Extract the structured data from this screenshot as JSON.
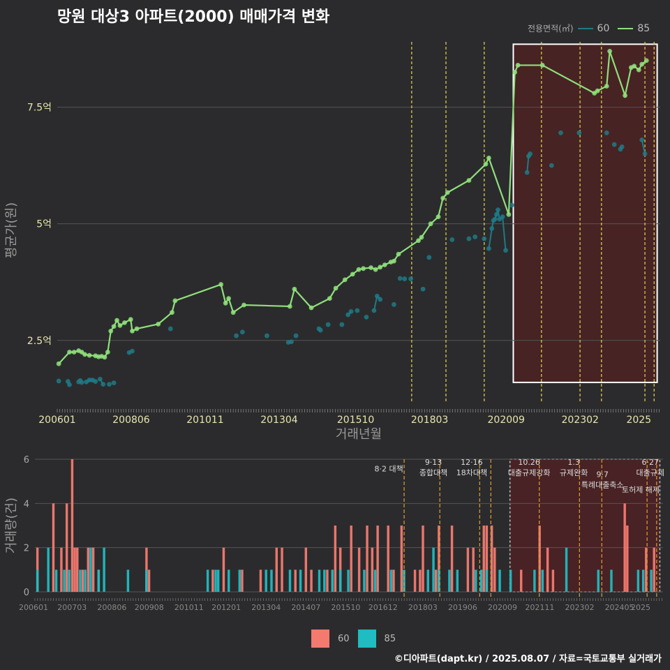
{
  "title": "망원 대상3 아파트(2000) 매매가격 변화",
  "credit": "©디아파트(dapt.kr) / 2025.08.07 / 자료=국토교통부 실거래가",
  "colors": {
    "bg": "#2b2b2d",
    "grid": "#555555",
    "s60_line": "#1f7a86",
    "s85_line": "#8fe07a",
    "bar60": "#f47a70",
    "bar85": "#1fbcc2",
    "policy_top": "#e8d84a",
    "policy_bottom": "#e0a030",
    "highlight_fill": "#4a2224",
    "axis_text": "#e8e6b0"
  },
  "legend_top": {
    "title": "전용면적(㎡)",
    "items": [
      "60",
      "85"
    ]
  },
  "legend_bottom": {
    "items": [
      "60",
      "85"
    ]
  },
  "chart_data": [
    {
      "type": "line",
      "xlabel": "거래년월",
      "ylabel": "평균가(원)",
      "y_ticks": [
        {
          "value": 25000,
          "label": "2.5억"
        },
        {
          "value": 50000,
          "label": "5억"
        },
        {
          "value": 75000,
          "label": "7.5억"
        }
      ],
      "ylim": [
        11500,
        89000
      ],
      "xlim": [
        2006.0,
        2025.7
      ],
      "x_ticks": [
        "200601",
        "200806",
        "201011",
        "201304",
        "201510",
        "201803",
        "202009",
        "202302",
        "2025"
      ],
      "grid": true,
      "legend": "top-right",
      "highlight": {
        "x0": 2020.9,
        "x1": 2025.6,
        "y0": 16000,
        "y1": 88500
      },
      "policy_lines": [
        2017.58,
        2018.7,
        2019.95,
        2021.82,
        2023.08,
        2023.78,
        2025.2,
        2025.5
      ],
      "series": [
        {
          "name": "85",
          "x": [
            2006.05,
            2006.4,
            2006.55,
            2006.7,
            2006.8,
            2006.9,
            2007.05,
            2007.25,
            2007.35,
            2007.45,
            2007.55,
            2007.65,
            2007.75,
            2007.85,
            2007.95,
            2008.05,
            2008.2,
            2008.4,
            2008.45,
            2008.6,
            2009.3,
            2009.75,
            2009.85,
            2011.35,
            2011.5,
            2011.6,
            2011.75,
            2012.1,
            2013.6,
            2013.75,
            2014.3,
            2014.9,
            2015.1,
            2015.4,
            2015.65,
            2015.85,
            2016.0,
            2016.25,
            2016.4,
            2016.55,
            2016.7,
            2016.9,
            2017.0,
            2017.15,
            2017.8,
            2017.9,
            2018.2,
            2018.45,
            2018.6,
            2018.75,
            2019.45,
            2020.0,
            2020.1,
            2020.75,
            2020.95,
            2021.05,
            2021.85,
            2023.55,
            2023.65,
            2023.95,
            2024.05,
            2024.55,
            2024.75,
            2024.85,
            2025.0,
            2025.1,
            2025.25
          ],
          "y": [
            20000,
            22500,
            22500,
            22800,
            22500,
            22000,
            21800,
            21700,
            21500,
            21600,
            21400,
            22500,
            27000,
            28000,
            29300,
            28200,
            28800,
            29500,
            27000,
            27500,
            28500,
            31000,
            33500,
            37000,
            33000,
            34000,
            31000,
            32600,
            32300,
            36000,
            32000,
            34000,
            36200,
            38000,
            39200,
            40200,
            40400,
            40600,
            40200,
            40700,
            41200,
            41800,
            42000,
            43500,
            46400,
            47100,
            50000,
            51500,
            55500,
            56700,
            59300,
            62800,
            64100,
            52000,
            82500,
            84000,
            84000,
            78000,
            78500,
            79500,
            87000,
            77500,
            83500,
            83800,
            83000,
            84200,
            85000
          ]
        },
        {
          "name": "60",
          "x": [
            2006.05,
            2006.35,
            2006.4,
            2006.7,
            2006.75,
            2006.8,
            2006.95,
            2007.05,
            2007.15,
            2007.25,
            2007.4,
            2007.5,
            2007.7,
            2007.85,
            2008.35,
            2008.45,
            2009.7,
            2011.85,
            2012.05,
            2012.85,
            2013.55,
            2013.65,
            2013.8,
            2014.55,
            2014.6,
            2014.85,
            2015.3,
            2015.5,
            2015.6,
            2015.8,
            2016.1,
            2016.35,
            2016.45,
            2016.55,
            2017.0,
            2017.2,
            2017.35,
            2017.55,
            2017.95,
            2018.15,
            2018.9,
            2019.45,
            2019.65,
            2019.95,
            2020.1,
            2020.2,
            2020.25,
            2020.3,
            2020.35,
            2020.4,
            2020.45,
            2020.55,
            2020.65,
            2020.85,
            2021.35,
            2021.4,
            2021.45,
            2022.15,
            2022.45,
            2023.05,
            2023.95,
            2024.2,
            2024.4,
            2024.45,
            2025.1,
            2025.2
          ],
          "y": [
            16300,
            16200,
            15500,
            16100,
            16400,
            16000,
            16100,
            16500,
            16500,
            16200,
            16700,
            15600,
            15600,
            15900,
            22400,
            22700,
            27500,
            26000,
            26800,
            26000,
            24600,
            24700,
            26000,
            27500,
            27200,
            28400,
            28400,
            30500,
            31200,
            31400,
            30000,
            31400,
            34500,
            33800,
            32700,
            38300,
            38200,
            38200,
            36000,
            42800,
            46600,
            46800,
            47200,
            46800,
            44700,
            49000,
            50700,
            51000,
            52000,
            53000,
            51000,
            51500,
            44300,
            54000,
            61000,
            64500,
            65000,
            62500,
            69500,
            69500,
            69500,
            67000,
            66000,
            66500,
            68000,
            65000
          ]
        }
      ]
    },
    {
      "type": "bar",
      "ylabel": "거래량(건)",
      "ylim": [
        0,
        6
      ],
      "y_ticks": [
        0,
        2,
        4,
        6
      ],
      "xlim": [
        2006.0,
        2025.7
      ],
      "x_ticks": [
        "200601",
        "200703",
        "200806",
        "200908",
        "201011",
        "201201",
        "201304",
        "201407",
        "201510",
        "201612",
        "201803",
        "201906",
        "202009",
        "202111",
        "202302",
        "202405",
        "2025"
      ],
      "highlight": {
        "x0": 2020.9,
        "x1": 2025.6
      },
      "policy_lines": [
        2017.58,
        2018.7,
        2019.95,
        2020.3,
        2021.82,
        2023.08,
        2023.78,
        2025.2,
        2025.5
      ],
      "policy_labels": [
        {
          "x": 2017.1,
          "y": 5.45,
          "lines": [
            "8·2 대책"
          ]
        },
        {
          "x": 2018.5,
          "y": 5.75,
          "lines": [
            "9·13",
            "종합대책"
          ]
        },
        {
          "x": 2019.7,
          "y": 5.75,
          "lines": [
            "12·16",
            "18차대책"
          ]
        },
        {
          "x": 2021.5,
          "y": 5.75,
          "lines": [
            "10.26",
            "대출규제강화"
          ]
        },
        {
          "x": 2022.9,
          "y": 5.75,
          "lines": [
            "1.3",
            "규제완화"
          ]
        },
        {
          "x": 2023.8,
          "y": 5.2,
          "lines": [
            "9·7",
            "특례대출축소"
          ]
        },
        {
          "x": 2025.3,
          "y": 5.75,
          "lines": [
            "6·27",
            "대출규제"
          ]
        },
        {
          "x": 2025.0,
          "y": 4.5,
          "lines": [
            "토허제 해제"
          ]
        }
      ],
      "series": [
        {
          "name": "60",
          "x": [
            2006.08,
            2006.58,
            2006.83,
            2007.0,
            2007.17,
            2007.25,
            2007.33,
            2007.5,
            2007.67,
            2007.83,
            2008.0,
            2009.5,
            2009.58,
            2011.58,
            2011.92,
            2012.5,
            2013.08,
            2013.58,
            2013.75,
            2014.17,
            2014.5,
            2014.67,
            2015.17,
            2015.42,
            2015.58,
            2015.92,
            2016.17,
            2016.42,
            2016.58,
            2016.75,
            2017.08,
            2017.25,
            2017.5,
            2017.92,
            2018.08,
            2018.17,
            2018.58,
            2018.67,
            2019.08,
            2019.58,
            2019.75,
            2020.08,
            2020.17,
            2020.33,
            2020.42,
            2021.25,
            2021.83,
            2022.08,
            2022.25,
            2024.5,
            2024.58,
            2025.17,
            2025.42
          ],
          "values": [
            2,
            4,
            2,
            4,
            6,
            2,
            2,
            1,
            2,
            2,
            1,
            2,
            1,
            1,
            2,
            1,
            1,
            2,
            2,
            1,
            2,
            1,
            1,
            3,
            2,
            3,
            2,
            3,
            2,
            3,
            3,
            1,
            3,
            1,
            1,
            3,
            1,
            3,
            3,
            2,
            2,
            3,
            3,
            3,
            2,
            1,
            3,
            2,
            1,
            4,
            3,
            2,
            2
          ]
        },
        {
          "name": "85",
          "x": [
            2006.08,
            2006.42,
            2006.67,
            2006.92,
            2007.08,
            2007.42,
            2007.58,
            2007.75,
            2008.0,
            2008.17,
            2008.92,
            2009.5,
            2011.42,
            2011.67,
            2011.75,
            2012.08,
            2012.42,
            2013.25,
            2013.42,
            2014.0,
            2014.33,
            2014.92,
            2015.08,
            2015.33,
            2015.58,
            2015.83,
            2016.33,
            2016.67,
            2017.17,
            2017.58,
            2018.33,
            2018.5,
            2018.67,
            2019.0,
            2019.25,
            2019.83,
            2020.0,
            2020.17,
            2020.58,
            2020.92,
            2021.67,
            2021.92,
            2022.67,
            2023.67,
            2024.08,
            2024.92,
            2025.08,
            2025.33
          ],
          "values": [
            1,
            2,
            1,
            1,
            1,
            1,
            1,
            2,
            1,
            2,
            1,
            1,
            1,
            1,
            1,
            1,
            1,
            1,
            1,
            1,
            1,
            1,
            1,
            1,
            1,
            1,
            1,
            1,
            1,
            1,
            1,
            2,
            1,
            1,
            1,
            1,
            1,
            1,
            1,
            1,
            1,
            1,
            2,
            1,
            1,
            1,
            1,
            1
          ]
        }
      ]
    }
  ]
}
